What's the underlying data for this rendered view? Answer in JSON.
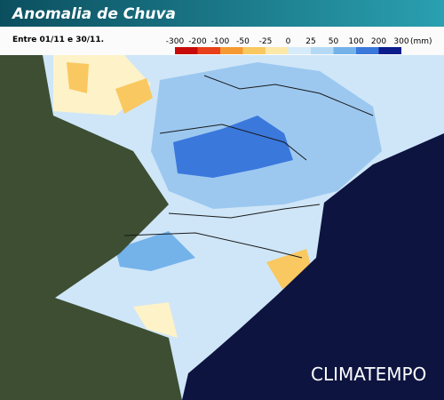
{
  "header": {
    "title": "Anomalia de Chuva",
    "subtitle": "Entre 01/11 e 30/11."
  },
  "legend": {
    "unit": "(mm)",
    "items": [
      {
        "label": "-300",
        "color": "#c80a0a"
      },
      {
        "label": "-200",
        "color": "#e8401a"
      },
      {
        "label": "-100",
        "color": "#f59a32"
      },
      {
        "label": "-50",
        "color": "#f9c860"
      },
      {
        "label": "-25",
        "color": "#fde8a8"
      },
      {
        "label": "0",
        "color": "#ffffff"
      },
      {
        "label": "25",
        "color": "#d6ecfa"
      },
      {
        "label": "50",
        "color": "#b4d9f4"
      },
      {
        "label": "100",
        "color": "#74b2ea"
      },
      {
        "label": "200",
        "color": "#3a78dc"
      },
      {
        "label": "300",
        "color": "#0c1c8c"
      }
    ]
  },
  "brand": "CLIMATEMPO"
}
